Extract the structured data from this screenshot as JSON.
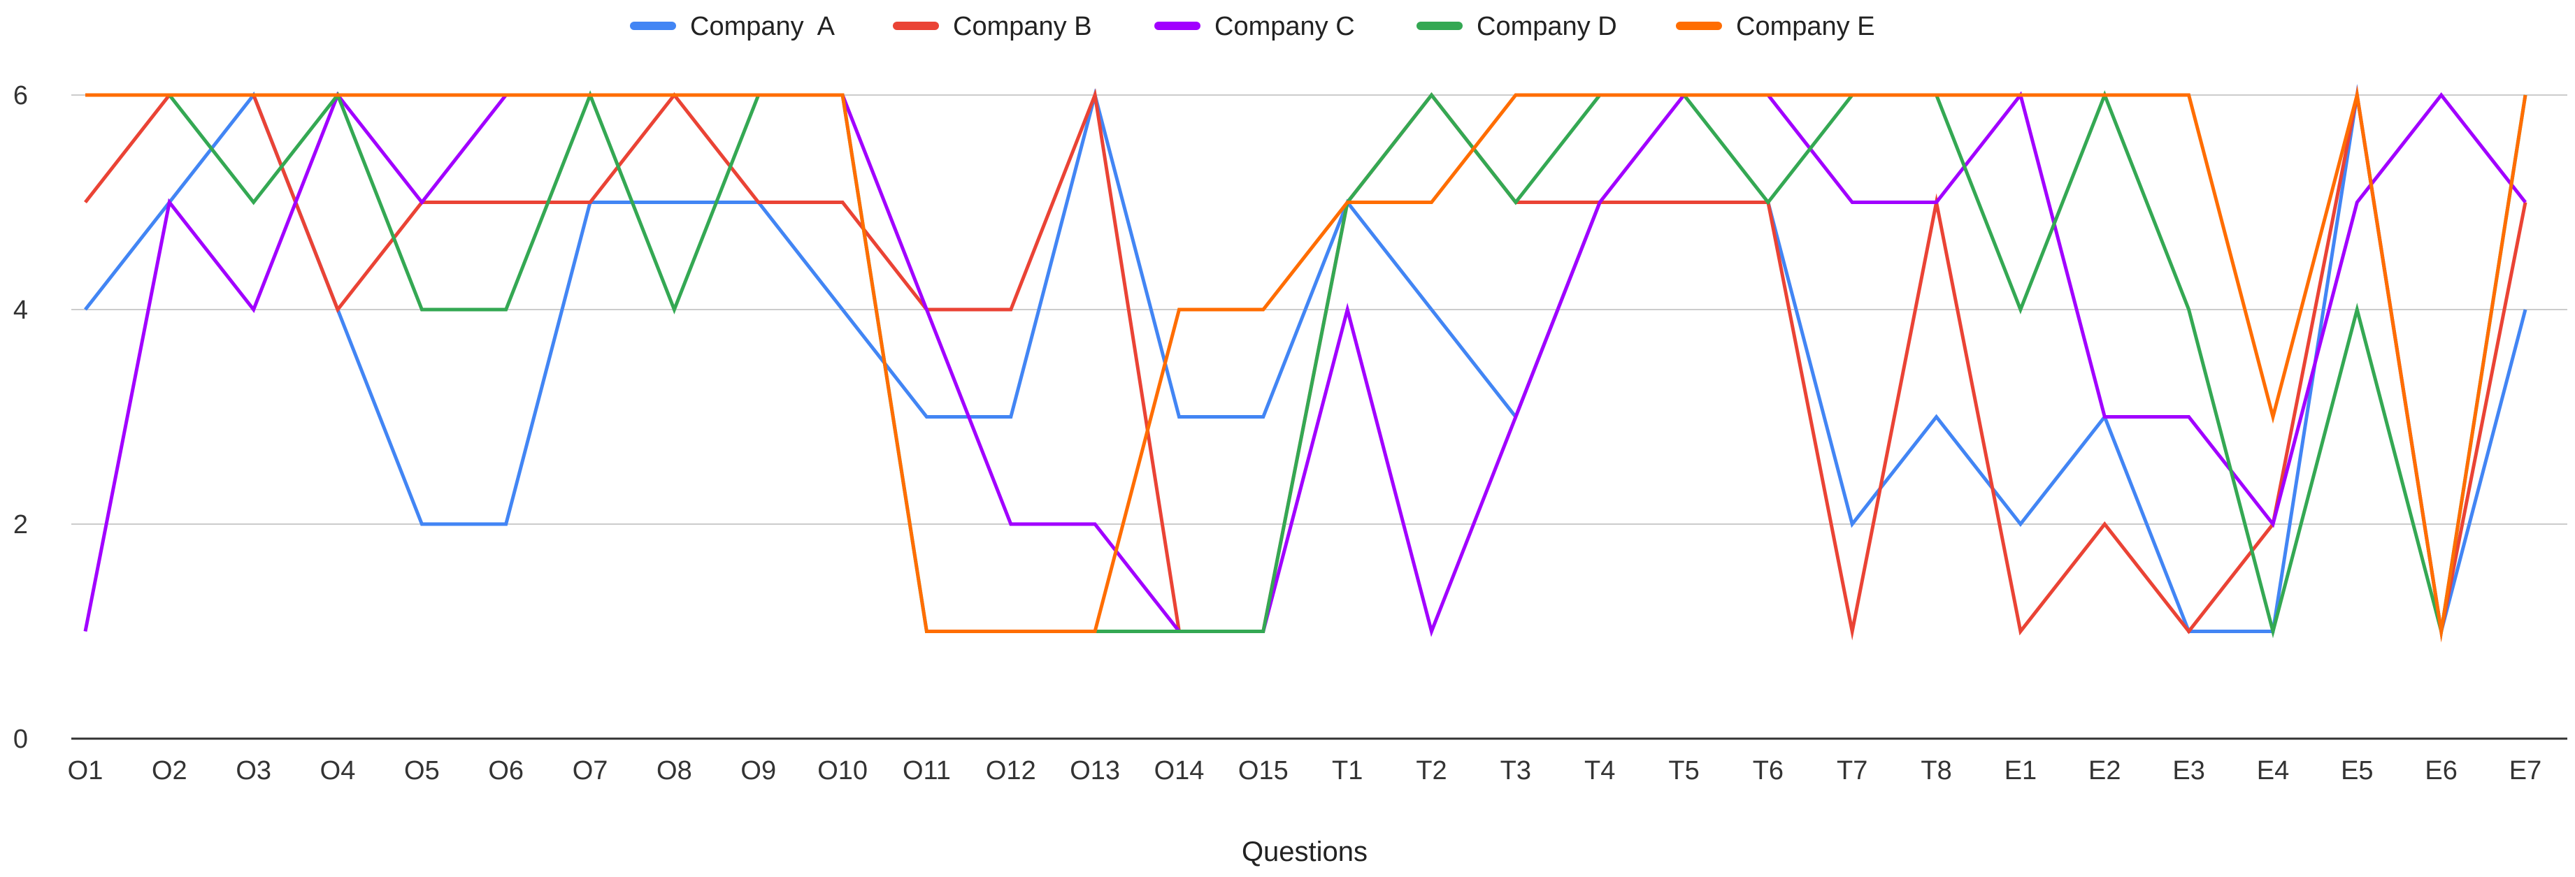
{
  "chart_data": {
    "type": "line",
    "title": "",
    "xlabel": "Questions",
    "ylabel": "",
    "ylim": [
      0,
      6
    ],
    "yticks": [
      0,
      2,
      4,
      6
    ],
    "grid": true,
    "legend_position": "top",
    "categories": [
      "O1",
      "O2",
      "O3",
      "O4",
      "O5",
      "O6",
      "O7",
      "O8",
      "O9",
      "O10",
      "O11",
      "O12",
      "O13",
      "O14",
      "O15",
      "T1",
      "T2",
      "T3",
      "T4",
      "T5",
      "T6",
      "T7",
      "T8",
      "E1",
      "E2",
      "E3",
      "E4",
      "E5",
      "E6",
      "E7"
    ],
    "series": [
      {
        "name": "Company  A",
        "color": "#4285F4",
        "values": [
          4,
          5,
          6,
          4,
          2,
          2,
          5,
          5,
          5,
          4,
          3,
          3,
          6,
          3,
          3,
          5,
          4,
          3,
          5,
          5,
          5,
          2,
          3,
          2,
          3,
          1,
          1,
          6,
          1,
          4
        ]
      },
      {
        "name": "Company B",
        "color": "#EA4335",
        "values": [
          5,
          6,
          6,
          4,
          5,
          5,
          5,
          6,
          5,
          5,
          4,
          4,
          6,
          1,
          1,
          5,
          6,
          5,
          5,
          5,
          5,
          1,
          5,
          1,
          2,
          1,
          2,
          6,
          1,
          5
        ]
      },
      {
        "name": "Company C",
        "color": "#A100FF",
        "values": [
          1,
          5,
          4,
          6,
          5,
          6,
          6,
          6,
          6,
          6,
          4,
          2,
          2,
          1,
          1,
          4,
          1,
          3,
          5,
          6,
          6,
          5,
          5,
          6,
          3,
          3,
          2,
          5,
          6,
          5
        ]
      },
      {
        "name": "Company D",
        "color": "#34A853",
        "values": [
          6,
          6,
          5,
          6,
          4,
          4,
          6,
          4,
          6,
          6,
          1,
          1,
          1,
          1,
          1,
          5,
          6,
          5,
          6,
          6,
          5,
          6,
          6,
          4,
          6,
          4,
          1,
          4,
          1,
          6
        ]
      },
      {
        "name": "Company E",
        "color": "#FF6D01",
        "values": [
          6,
          6,
          6,
          6,
          6,
          6,
          6,
          6,
          6,
          6,
          1,
          1,
          1,
          4,
          4,
          5,
          5,
          6,
          6,
          6,
          6,
          6,
          6,
          6,
          6,
          6,
          3,
          6,
          1,
          6
        ]
      }
    ]
  }
}
